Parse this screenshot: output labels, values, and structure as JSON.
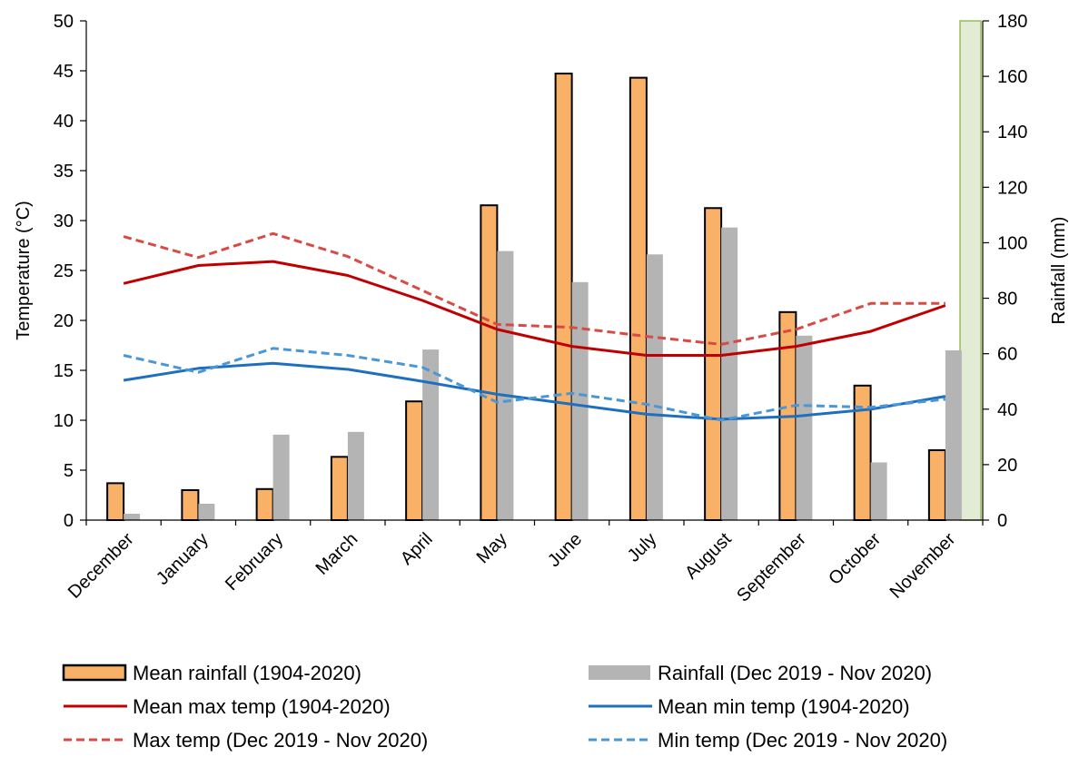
{
  "chart_data": {
    "type": "bar+line",
    "title": "",
    "categories": [
      "December",
      "January",
      "February",
      "March",
      "April",
      "May",
      "June",
      "July",
      "August",
      "September",
      "October",
      "November"
    ],
    "left_axis": {
      "label": "Temperature (°C)",
      "range": [
        0,
        50
      ],
      "ticks": [
        0,
        5,
        10,
        15,
        20,
        25,
        30,
        35,
        40,
        45,
        50
      ]
    },
    "right_axis": {
      "label": "Rainfall (mm)",
      "range": [
        0,
        180
      ],
      "ticks": [
        0,
        20,
        40,
        60,
        80,
        100,
        120,
        140,
        160,
        180
      ]
    },
    "bar_series": [
      {
        "name": "Mean rainfall (1904-2020)",
        "axis": "right",
        "color": "#F9B168",
        "outline": "#000000",
        "values": [
          13.3,
          10.8,
          11.2,
          22.8,
          42.8,
          113.5,
          161.0,
          159.5,
          112.5,
          75.0,
          48.5,
          25.2
        ]
      },
      {
        "name": "Rainfall (Dec 2019 - Nov 2020)",
        "axis": "right",
        "color": "#B4B4B4",
        "values": [
          2.3,
          5.9,
          30.8,
          31.8,
          61.5,
          97.0,
          85.8,
          95.8,
          105.5,
          66.5,
          20.8,
          61.2
        ]
      }
    ],
    "line_series": [
      {
        "name": "Mean max temp (1904-2020)",
        "axis": "left",
        "color": "#C00000",
        "dash": "solid",
        "values": [
          23.7,
          25.5,
          25.9,
          24.5,
          22.0,
          19.1,
          17.4,
          16.5,
          16.5,
          17.4,
          18.9,
          21.5
        ]
      },
      {
        "name": "Mean min temp (1904-2020)",
        "axis": "left",
        "color": "#1F6FC0",
        "dash": "solid",
        "values": [
          14.0,
          15.2,
          15.7,
          15.1,
          13.9,
          12.6,
          11.6,
          10.6,
          10.1,
          10.4,
          11.1,
          12.4
        ]
      },
      {
        "name": "Max temp (Dec 2019 - Nov 2020)",
        "axis": "left",
        "color": "#D94A45",
        "dash": "dashed",
        "values": [
          28.4,
          26.3,
          28.7,
          26.4,
          23.0,
          19.6,
          19.3,
          18.4,
          17.6,
          19.1,
          21.7,
          21.7
        ]
      },
      {
        "name": "Min temp (Dec 2019 - Nov 2020)",
        "axis": "left",
        "color": "#4A97D6",
        "dash": "dashed",
        "values": [
          16.5,
          14.8,
          17.2,
          16.5,
          15.3,
          11.8,
          12.7,
          11.6,
          10.0,
          11.5,
          11.3,
          12.1
        ]
      }
    ],
    "highlight_band": {
      "color": "#E2EBD3",
      "border": "#9BBB59",
      "position": "right edge of plot"
    },
    "grid": false,
    "legend_position": "bottom"
  }
}
